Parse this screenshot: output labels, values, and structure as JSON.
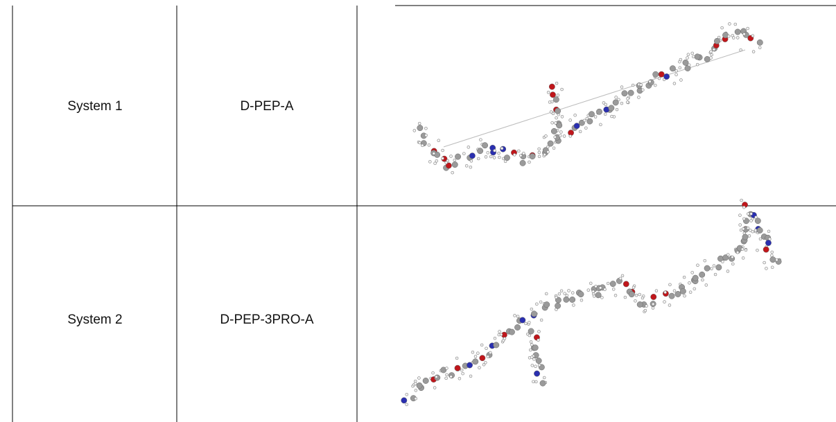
{
  "table": {
    "rows": [
      [
        "System 1",
        "D-PEP-A"
      ],
      [
        "System 2",
        "D-PEP-3PRO-A"
      ]
    ]
  }
}
